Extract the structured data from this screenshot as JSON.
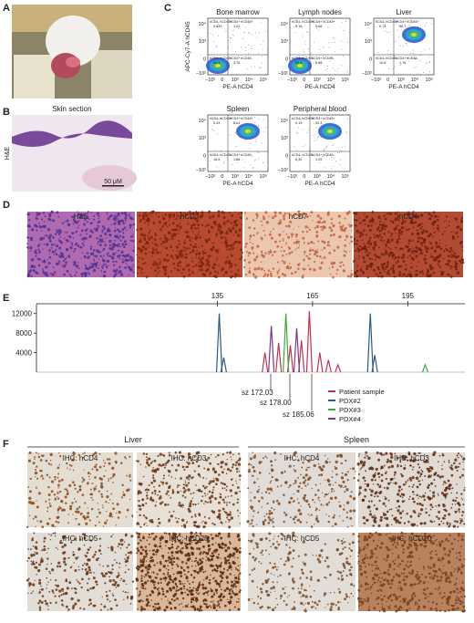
{
  "panel_labels": {
    "A": "A",
    "B": "B",
    "C": "C",
    "D": "D",
    "E": "E",
    "F": "F"
  },
  "B": {
    "title": "Skin section",
    "stain": "H&E",
    "scale": "50 μM"
  },
  "C": {
    "ylabel": "APC-Cy7-A hCD45",
    "xlabel": "PE-A hCD4",
    "yticks": [
      "10⁴",
      "10³",
      "0",
      "−10²"
    ],
    "xticks": [
      "−10²",
      "0",
      "10³",
      "10⁴",
      "10⁵"
    ],
    "quadrant_names": [
      "hCD4- hCD45+",
      "hCD4+ hCD45+",
      "hCD4- hCD45-",
      "hCD4+ hCD45-"
    ],
    "plots": [
      {
        "title": "Bone marrow",
        "quadrants": [
          "0.849",
          "1.02",
          "94.3",
          "3.76"
        ]
      },
      {
        "title": "Lymph nodes",
        "quadrants": [
          "0.16",
          "9.63",
          "89.5",
          "0.68"
        ]
      },
      {
        "title": "Liver",
        "quadrants": [
          "0.74",
          "86.7",
          "10.8",
          "1.76"
        ]
      },
      {
        "title": "Spleen",
        "quadrants": [
          "0.33",
          "81.4",
          "16.5",
          "1.66"
        ]
      },
      {
        "title": "Peripheral blood",
        "quadrants": [
          "0.19",
          "92.3",
          "6.30",
          "1.25"
        ]
      }
    ]
  },
  "D": {
    "labels": [
      "H&E",
      "hCD3",
      "hCD7",
      "hCD4"
    ]
  },
  "E": {
    "chart_data": {
      "type": "line",
      "xlim": [
        78,
        213
      ],
      "xticks": [
        135,
        165,
        195
      ],
      "ylim": [
        0,
        14000
      ],
      "yticks": [
        4000,
        8000,
        12000
      ],
      "annotations": [
        "sz 172.03",
        "sz 178.00",
        "sz 185.06"
      ],
      "series": [
        {
          "name": "Patient sample",
          "color": "#c8304f",
          "x": [
            150,
            154.3,
            158,
            161.5,
            164,
            167.3,
            170,
            173
          ],
          "values": [
            4000,
            6000,
            5500,
            6500,
            12500,
            4000,
            2500,
            1500
          ]
        },
        {
          "name": "PDX#2",
          "color": "#2b5c86",
          "x": [
            135.6,
            137,
            183.2,
            184.6
          ],
          "values": [
            12000,
            3000,
            12000,
            3500
          ]
        },
        {
          "name": "PDX#3",
          "color": "#3aaa3a",
          "x": [
            156.6,
            200.5
          ],
          "values": [
            12000,
            1500
          ]
        },
        {
          "name": "PDX#4",
          "color": "#7a3a8c",
          "x": [
            152,
            160
          ],
          "values": [
            9500,
            9000
          ]
        }
      ]
    }
  },
  "F": {
    "groups": [
      "Liver",
      "Spleen"
    ],
    "labels": [
      [
        "IHC: hCD4",
        "IHC: hCD3",
        "IHC: hCD4",
        "IHC: hCD3"
      ],
      [
        "IHC: hCD5",
        "IHC: hCD20",
        "IHC: hCD5",
        "IHC: hCD20"
      ]
    ]
  }
}
